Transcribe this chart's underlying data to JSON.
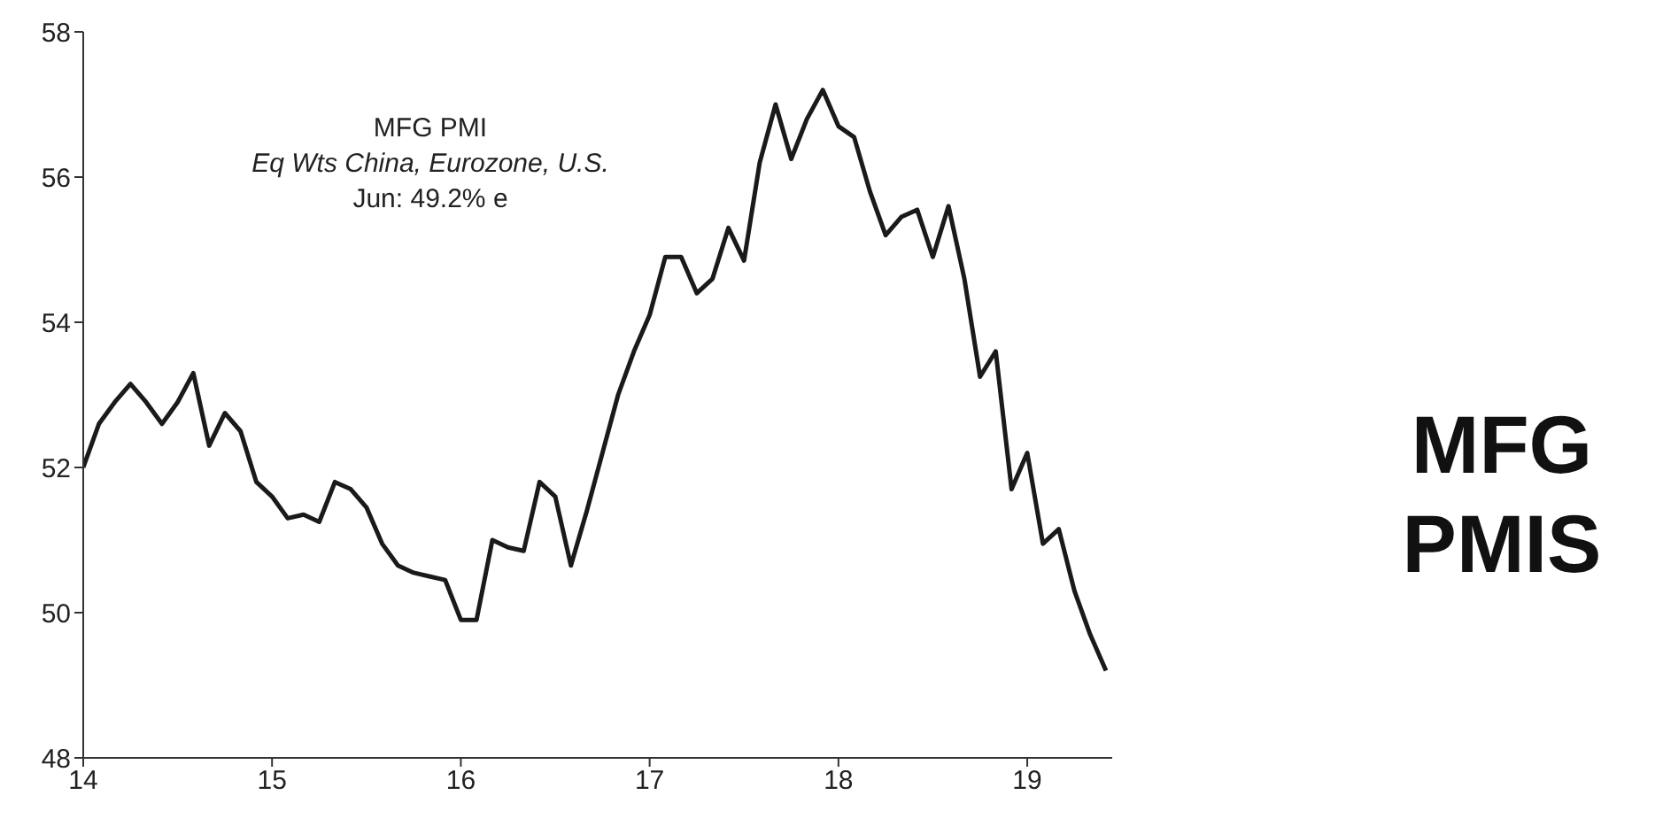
{
  "chart_data": {
    "type": "line",
    "title": "MFG PMI",
    "subtitle": "Eq Wts China, Eurozone, U.S.",
    "annotations": [
      "Jun: 49.2% e",
      "MFG PMIS"
    ],
    "x": [
      14.0,
      14.083,
      14.167,
      14.25,
      14.333,
      14.417,
      14.5,
      14.583,
      14.667,
      14.75,
      14.833,
      14.917,
      15.0,
      15.083,
      15.167,
      15.25,
      15.333,
      15.417,
      15.5,
      15.583,
      15.667,
      15.75,
      15.833,
      15.917,
      16.0,
      16.083,
      16.167,
      16.25,
      16.333,
      16.417,
      16.5,
      16.583,
      16.667,
      16.75,
      16.833,
      16.917,
      17.0,
      17.083,
      17.167,
      17.25,
      17.333,
      17.417,
      17.5,
      17.583,
      17.667,
      17.75,
      17.833,
      17.917,
      18.0,
      18.083,
      18.167,
      18.25,
      18.333,
      18.417,
      18.5,
      18.583,
      18.667,
      18.75,
      18.833,
      18.917,
      19.0,
      19.083,
      19.167,
      19.25,
      19.333,
      19.417
    ],
    "series": [
      {
        "color": "#1a1a1a",
        "values": [
          52.0,
          52.6,
          52.9,
          53.15,
          52.9,
          52.6,
          52.9,
          53.3,
          52.3,
          52.75,
          52.5,
          51.8,
          51.6,
          51.3,
          51.35,
          51.25,
          51.8,
          51.7,
          51.45,
          50.95,
          50.65,
          50.55,
          50.5,
          50.45,
          49.9,
          49.9,
          51.0,
          50.9,
          50.85,
          51.8,
          51.6,
          50.65,
          51.4,
          52.2,
          53.0,
          53.6,
          54.1,
          54.9,
          54.9,
          54.4,
          54.6,
          55.3,
          54.85,
          56.2,
          57.0,
          56.25,
          56.8,
          57.2,
          56.7,
          56.55,
          55.8,
          55.2,
          55.45,
          55.55,
          54.9,
          55.6,
          54.6,
          53.25,
          53.6,
          51.7,
          52.2,
          50.95,
          51.15,
          50.3,
          49.7,
          49.2
        ]
      }
    ],
    "xlim": [
      14,
      19.45
    ],
    "xticks": [
      14,
      15,
      16,
      17,
      18,
      19
    ],
    "ylim": [
      48,
      58
    ],
    "yticks": [
      48,
      50,
      52,
      54,
      56,
      58
    ],
    "grid": false,
    "legend": false,
    "marker": "none",
    "line_style": "solid"
  }
}
